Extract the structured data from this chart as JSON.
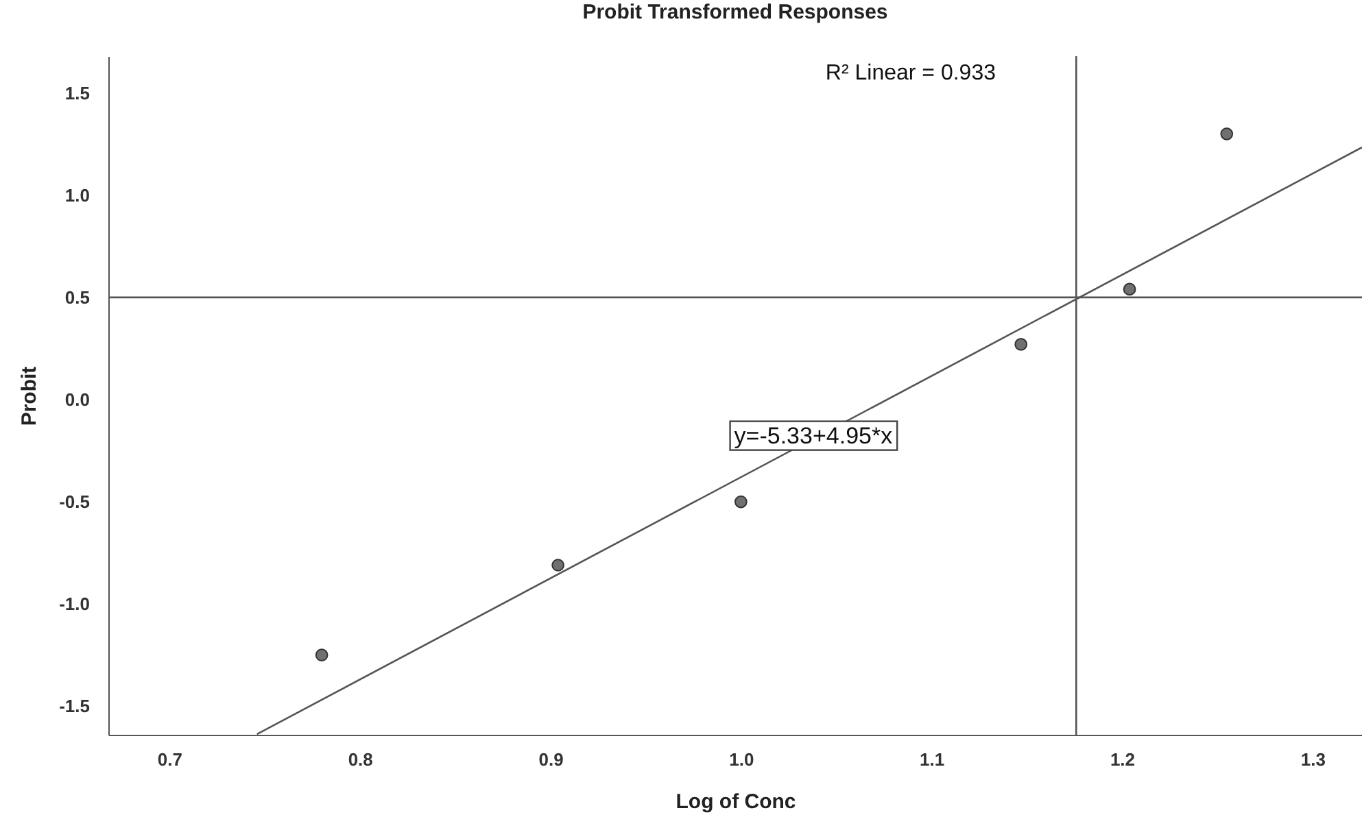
{
  "chart_data": {
    "type": "scatter",
    "title": "Probit Transformed Responses",
    "xlabel": "Log of Conc",
    "ylabel": "Probit",
    "xlim": [
      0.668,
      1.326
    ],
    "ylim": [
      -1.64,
      1.68
    ],
    "xticks": [
      {
        "value": 0.7,
        "label": "0.7"
      },
      {
        "value": 0.8,
        "label": "0.8"
      },
      {
        "value": 0.9,
        "label": "0.9"
      },
      {
        "value": 1.0,
        "label": "1.0"
      },
      {
        "value": 1.1,
        "label": "1.1"
      },
      {
        "value": 1.2,
        "label": "1.2"
      },
      {
        "value": 1.3,
        "label": "1.3"
      }
    ],
    "yticks": [
      {
        "value": -1.5,
        "label": "-1.5"
      },
      {
        "value": -1.0,
        "label": "-1.0"
      },
      {
        "value": -0.5,
        "label": "-0.5"
      },
      {
        "value": 0.0,
        "label": "0.0"
      },
      {
        "value": 0.5,
        "label": "0.5"
      },
      {
        "value": 1.0,
        "label": "1.0"
      },
      {
        "value": 1.5,
        "label": "1.5"
      }
    ],
    "series": [
      {
        "marker": "circle",
        "color": "#707070",
        "x": [
          0.78,
          0.904,
          1.0,
          1.147,
          1.204,
          1.255
        ],
        "values": [
          -1.25,
          -0.81,
          -0.5,
          0.27,
          0.54,
          1.3
        ]
      },
      {
        "type": "line",
        "color": "#555555",
        "x": [
          0.746,
          1.326
        ],
        "values": [
          -1.637,
          1.234
        ]
      }
    ],
    "ref_lines": [
      {
        "axis": "y",
        "value": 0.5,
        "color": "#555555"
      },
      {
        "axis": "x",
        "value": 1.176,
        "color": "#555555"
      }
    ],
    "annotations": [
      "R² Linear = 0.933",
      {
        "text": "y=-5.33+4.95*x",
        "x": 1.038,
        "y": -0.18
      }
    ],
    "grid": false
  }
}
